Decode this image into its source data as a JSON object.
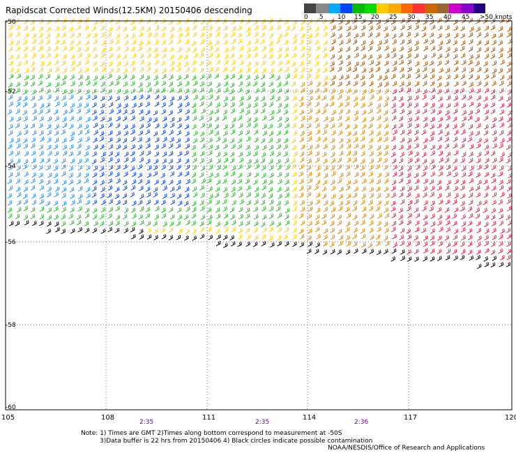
{
  "title": "Rapidscat Corrected Winds(12.5KM) 20150406 descending",
  "colorbar": {
    "colors": [
      "#444444",
      "#888888",
      "#00aaff",
      "#0044ff",
      "#00bb00",
      "#00dd00",
      "#ffcc00",
      "#ffaa00",
      "#ff6600",
      "#ff3333",
      "#cc6600",
      "#996633",
      "#cc00cc",
      "#8800cc",
      "#220088"
    ],
    "labels": [
      "0",
      "5",
      "10",
      "15",
      "20",
      "25",
      "30",
      "35",
      "40",
      "45",
      ">50 knots"
    ]
  },
  "axes": {
    "x_ticks": [
      "105",
      "108",
      "111",
      "114",
      "117",
      "120"
    ],
    "y_ticks": [
      "-50",
      "-52",
      "-54",
      "-56",
      "-58",
      "-60"
    ]
  },
  "times": [
    "2:35",
    "2:35",
    "2:36"
  ],
  "notes": {
    "line1": "Note: 1) Times are GMT 2)Times along bottom correspond to measurement at -50S",
    "line2": "3)Data buffer is 22 hrs from 20150406 4) Black circles indicate possible contamination"
  },
  "credit": "NOAA/NESDIS/Office of Research and Applications",
  "speed_colors": {
    "light": "#000000",
    "blue": "#0044ff",
    "lightblue": "#1e90ff",
    "green": "#22bb22",
    "yellow": "#ffcc00",
    "orange": "#dd8800",
    "brown": "#aa5500",
    "red": "#dd2244"
  }
}
